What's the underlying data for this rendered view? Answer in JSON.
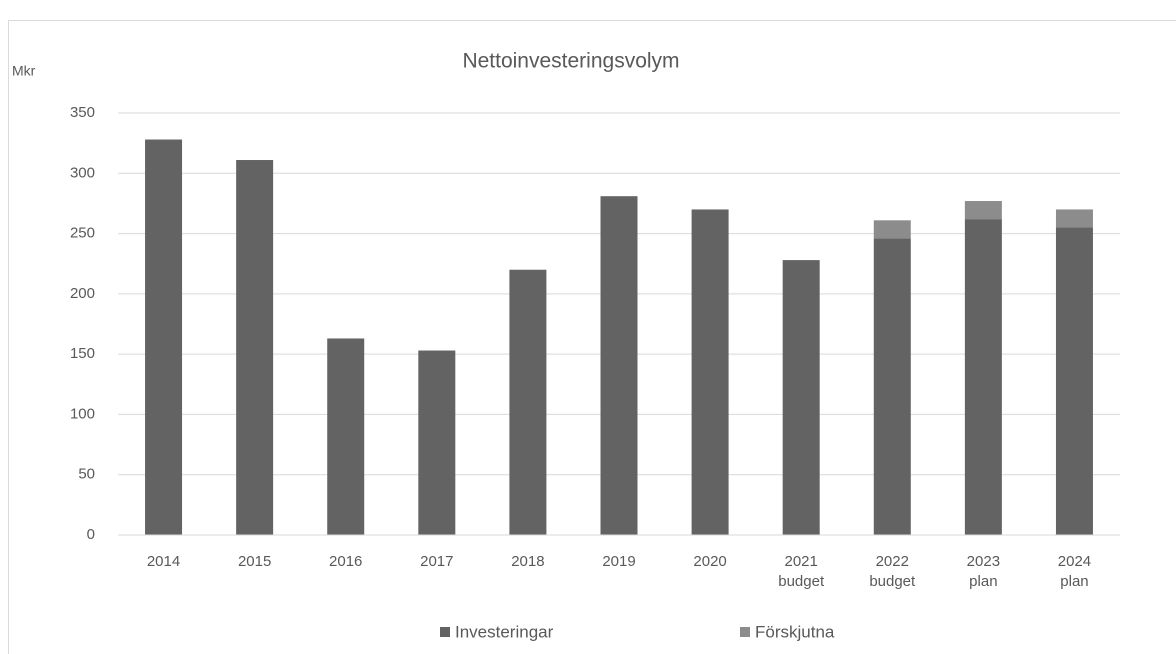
{
  "chart_data": {
    "type": "stacked_bar",
    "title": "Nettoinvesteringsvolym",
    "y_label": "Mkr",
    "categories": [
      "2014",
      "2015",
      "2016",
      "2017",
      "2018",
      "2019",
      "2020",
      "2021\nbudget",
      "2022\nbudget",
      "2023\nplan",
      "2024\nplan"
    ],
    "series": [
      {
        "name": "Investeringar",
        "color": "#636363",
        "values": [
          328,
          311,
          163,
          153,
          220,
          281,
          270,
          228,
          246,
          262,
          255
        ]
      },
      {
        "name": "Förskjutna",
        "color": "#8c8c8c",
        "values": [
          0,
          0,
          0,
          0,
          0,
          0,
          0,
          0,
          15,
          15,
          15
        ]
      }
    ],
    "ylim": [
      0,
      350
    ],
    "yticks": [
      0,
      50,
      100,
      150,
      200,
      250,
      300,
      350
    ],
    "grid": true,
    "legend": "bottom"
  }
}
